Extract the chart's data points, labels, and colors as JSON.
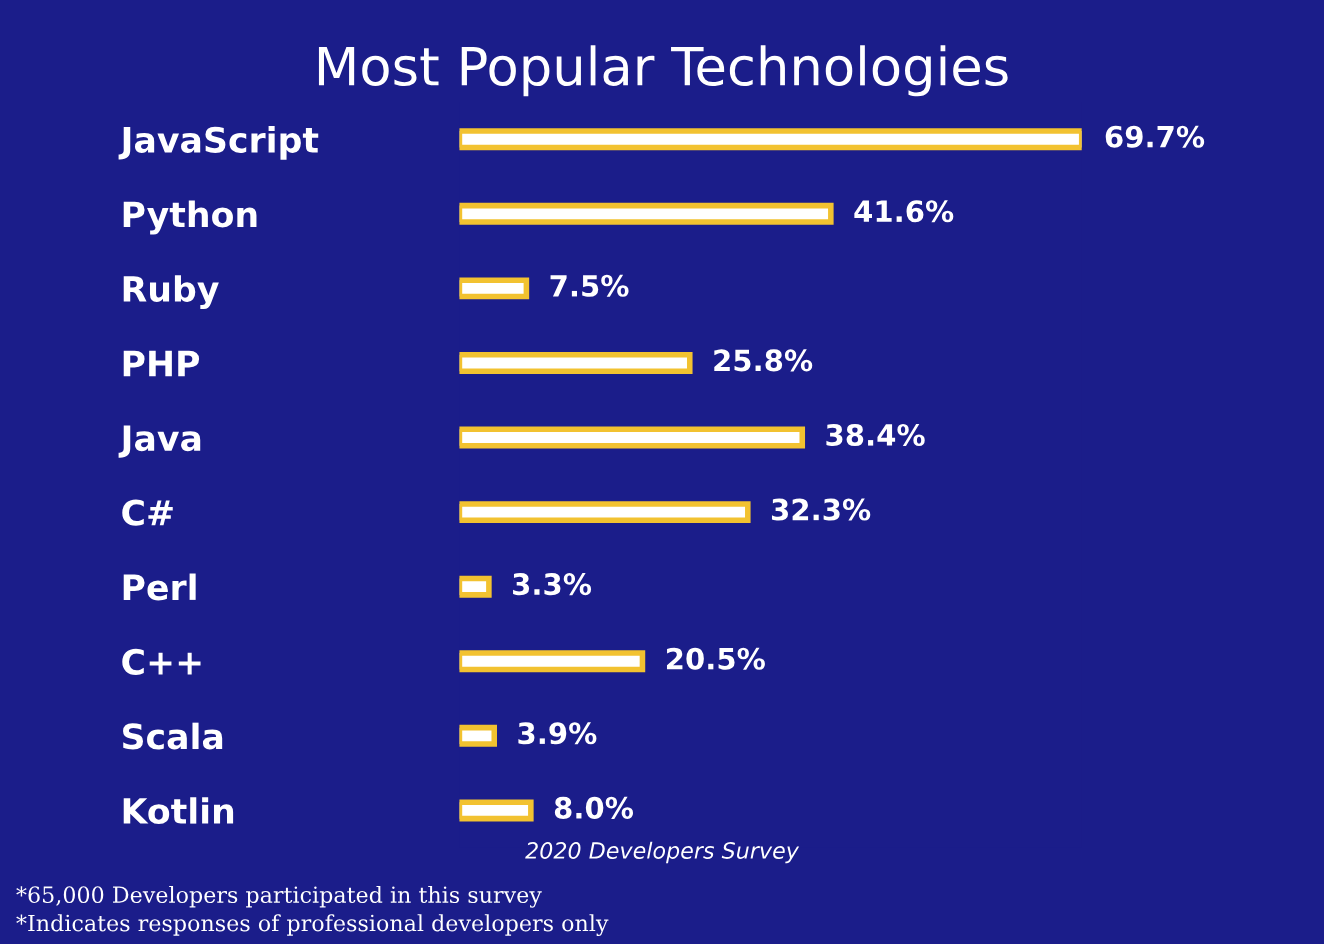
{
  "chart_data": {
    "type": "bar",
    "orientation": "horizontal",
    "title": "Most Popular Technologies",
    "categories": [
      "JavaScript",
      "Python",
      "Ruby",
      "PHP",
      "Java",
      "C#",
      "Perl",
      "C++",
      "Scala",
      "Kotlin"
    ],
    "values": [
      69.7,
      41.6,
      7.5,
      25.8,
      38.4,
      32.3,
      3.3,
      20.5,
      3.9,
      8.0
    ],
    "value_labels": [
      "69.7%",
      "41.6%",
      "7.5%",
      "25.8%",
      "38.4%",
      "32.3%",
      "3.3%",
      "20.5%",
      "3.9%",
      "8.0%"
    ],
    "color": "#ffffff",
    "annotations": [
      "2020 Developers Survey",
      "*65,000 Developers participated in this survey",
      "*Indicates responses of professional developers only"
    ],
    "grid": false,
    "legend": false,
    "tick_labels": "y"
  }
}
